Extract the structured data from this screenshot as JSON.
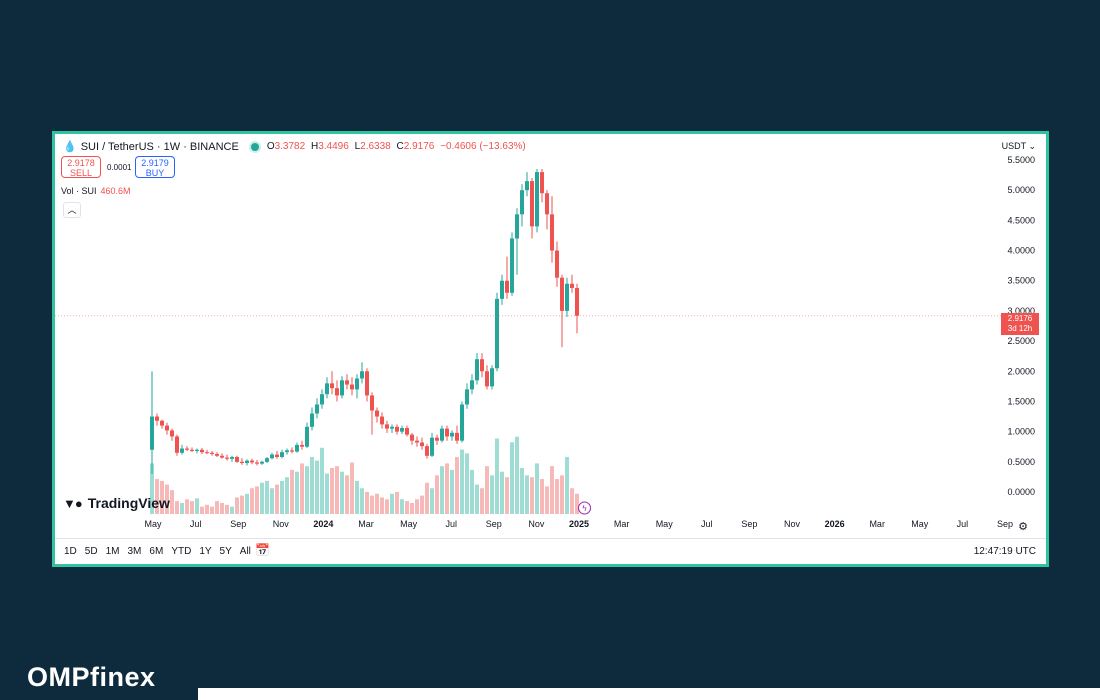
{
  "header": {
    "symbol": "SUI / TetherUS · 1W · BINANCE",
    "ohlc": {
      "o_label": "O",
      "o": "3.3782",
      "h_label": "H",
      "h": "3.4496",
      "l_label": "L",
      "l": "2.6338",
      "c_label": "C",
      "c": "2.9176",
      "change": "−0.4606 (−13.63%)"
    }
  },
  "trade": {
    "sell_price": "2.9178",
    "sell_label": "SELL",
    "spread": "0.0001",
    "buy_price": "2.9179",
    "buy_label": "BUY"
  },
  "volume_label": {
    "name": "Vol · SUI",
    "value": "460.6M"
  },
  "currency": "USDT",
  "brand_logo": "TradingView",
  "last_price_tag": {
    "price": "2.9176",
    "countdown": "3d 12h"
  },
  "timeframes": [
    "1D",
    "5D",
    "1M",
    "3M",
    "6M",
    "YTD",
    "1Y",
    "5Y",
    "All"
  ],
  "clock": "12:47:19 UTC",
  "site_brand": "OMPfinex",
  "colors": {
    "up": "#26a69a",
    "down": "#ef5350",
    "up_volume": "#9fdcd3",
    "down_volume": "#f7b9b7",
    "frame": "#2fc3a0",
    "background": "#0e2a3d"
  },
  "icons": {
    "calendar": "calendar-range-icon",
    "settings": "gear-icon",
    "status": "market-open-dot-icon",
    "flash": "lightning-icon"
  },
  "chart_data": {
    "type": "candlestick",
    "interval": "1W",
    "y_ticks": [
      "5.5000",
      "5.0000",
      "4.5000",
      "4.0000",
      "3.5000",
      "3.0000",
      "2.5000",
      "2.0000",
      "1.5000",
      "1.0000",
      "0.5000",
      "0.0000"
    ],
    "ylim": [
      0,
      5.5
    ],
    "x_ticks": [
      {
        "label": "May",
        "bold": false
      },
      {
        "label": "Jul",
        "bold": false
      },
      {
        "label": "Sep",
        "bold": false
      },
      {
        "label": "Nov",
        "bold": false
      },
      {
        "label": "2024",
        "bold": true
      },
      {
        "label": "Mar",
        "bold": false
      },
      {
        "label": "May",
        "bold": false
      },
      {
        "label": "Jul",
        "bold": false
      },
      {
        "label": "Sep",
        "bold": false
      },
      {
        "label": "Nov",
        "bold": false
      },
      {
        "label": "2025",
        "bold": true
      },
      {
        "label": "Mar",
        "bold": false
      },
      {
        "label": "May",
        "bold": false
      },
      {
        "label": "Jul",
        "bold": false
      },
      {
        "label": "Sep",
        "bold": false
      },
      {
        "label": "Nov",
        "bold": false
      },
      {
        "label": "2026",
        "bold": true
      },
      {
        "label": "Mar",
        "bold": false
      },
      {
        "label": "May",
        "bold": false
      },
      {
        "label": "Jul",
        "bold": false
      },
      {
        "label": "Sep",
        "bold": false
      }
    ],
    "last_price": 2.9176,
    "candles": [
      {
        "o": 0.7,
        "h": 2.0,
        "l": 0.3,
        "c": 1.25
      },
      {
        "o": 1.25,
        "h": 1.3,
        "l": 1.1,
        "c": 1.18
      },
      {
        "o": 1.18,
        "h": 1.2,
        "l": 1.05,
        "c": 1.1
      },
      {
        "o": 1.1,
        "h": 1.15,
        "l": 0.95,
        "c": 1.02
      },
      {
        "o": 1.02,
        "h": 1.05,
        "l": 0.85,
        "c": 0.92
      },
      {
        "o": 0.92,
        "h": 0.95,
        "l": 0.6,
        "c": 0.65
      },
      {
        "o": 0.65,
        "h": 0.78,
        "l": 0.62,
        "c": 0.72
      },
      {
        "o": 0.72,
        "h": 0.76,
        "l": 0.68,
        "c": 0.7
      },
      {
        "o": 0.7,
        "h": 0.74,
        "l": 0.66,
        "c": 0.68
      },
      {
        "o": 0.68,
        "h": 0.72,
        "l": 0.64,
        "c": 0.7
      },
      {
        "o": 0.7,
        "h": 0.73,
        "l": 0.63,
        "c": 0.66
      },
      {
        "o": 0.66,
        "h": 0.7,
        "l": 0.63,
        "c": 0.65
      },
      {
        "o": 0.65,
        "h": 0.68,
        "l": 0.6,
        "c": 0.63
      },
      {
        "o": 0.63,
        "h": 0.66,
        "l": 0.58,
        "c": 0.6
      },
      {
        "o": 0.6,
        "h": 0.64,
        "l": 0.55,
        "c": 0.57
      },
      {
        "o": 0.57,
        "h": 0.62,
        "l": 0.52,
        "c": 0.55
      },
      {
        "o": 0.55,
        "h": 0.6,
        "l": 0.5,
        "c": 0.58
      },
      {
        "o": 0.58,
        "h": 0.6,
        "l": 0.48,
        "c": 0.5
      },
      {
        "o": 0.5,
        "h": 0.56,
        "l": 0.45,
        "c": 0.48
      },
      {
        "o": 0.48,
        "h": 0.54,
        "l": 0.44,
        "c": 0.52
      },
      {
        "o": 0.52,
        "h": 0.55,
        "l": 0.46,
        "c": 0.49
      },
      {
        "o": 0.49,
        "h": 0.53,
        "l": 0.44,
        "c": 0.47
      },
      {
        "o": 0.47,
        "h": 0.52,
        "l": 0.45,
        "c": 0.5
      },
      {
        "o": 0.5,
        "h": 0.58,
        "l": 0.48,
        "c": 0.56
      },
      {
        "o": 0.56,
        "h": 0.65,
        "l": 0.54,
        "c": 0.62
      },
      {
        "o": 0.62,
        "h": 0.68,
        "l": 0.55,
        "c": 0.58
      },
      {
        "o": 0.58,
        "h": 0.7,
        "l": 0.56,
        "c": 0.66
      },
      {
        "o": 0.66,
        "h": 0.72,
        "l": 0.62,
        "c": 0.69
      },
      {
        "o": 0.69,
        "h": 0.74,
        "l": 0.64,
        "c": 0.67
      },
      {
        "o": 0.67,
        "h": 0.82,
        "l": 0.65,
        "c": 0.78
      },
      {
        "o": 0.78,
        "h": 0.85,
        "l": 0.7,
        "c": 0.75
      },
      {
        "o": 0.75,
        "h": 1.15,
        "l": 0.73,
        "c": 1.08
      },
      {
        "o": 1.08,
        "h": 1.4,
        "l": 1.02,
        "c": 1.3
      },
      {
        "o": 1.3,
        "h": 1.55,
        "l": 1.22,
        "c": 1.45
      },
      {
        "o": 1.45,
        "h": 1.7,
        "l": 1.38,
        "c": 1.62
      },
      {
        "o": 1.62,
        "h": 1.9,
        "l": 1.55,
        "c": 1.8
      },
      {
        "o": 1.8,
        "h": 2.0,
        "l": 1.62,
        "c": 1.72
      },
      {
        "o": 1.72,
        "h": 1.85,
        "l": 1.5,
        "c": 1.6
      },
      {
        "o": 1.6,
        "h": 1.92,
        "l": 1.55,
        "c": 1.85
      },
      {
        "o": 1.85,
        "h": 1.95,
        "l": 1.7,
        "c": 1.78
      },
      {
        "o": 1.78,
        "h": 1.9,
        "l": 1.6,
        "c": 1.7
      },
      {
        "o": 1.7,
        "h": 1.95,
        "l": 1.55,
        "c": 1.88
      },
      {
        "o": 1.88,
        "h": 2.15,
        "l": 1.8,
        "c": 2.0
      },
      {
        "o": 2.0,
        "h": 2.05,
        "l": 1.5,
        "c": 1.6
      },
      {
        "o": 1.6,
        "h": 1.65,
        "l": 0.95,
        "c": 1.35
      },
      {
        "o": 1.35,
        "h": 1.4,
        "l": 1.15,
        "c": 1.25
      },
      {
        "o": 1.25,
        "h": 1.32,
        "l": 1.05,
        "c": 1.12
      },
      {
        "o": 1.12,
        "h": 1.18,
        "l": 0.98,
        "c": 1.05
      },
      {
        "o": 1.05,
        "h": 1.12,
        "l": 0.98,
        "c": 1.08
      },
      {
        "o": 1.08,
        "h": 1.12,
        "l": 0.95,
        "c": 1.0
      },
      {
        "o": 1.0,
        "h": 1.1,
        "l": 0.96,
        "c": 1.06
      },
      {
        "o": 1.06,
        "h": 1.1,
        "l": 0.92,
        "c": 0.95
      },
      {
        "o": 0.95,
        "h": 0.98,
        "l": 0.78,
        "c": 0.85
      },
      {
        "o": 0.85,
        "h": 0.92,
        "l": 0.75,
        "c": 0.82
      },
      {
        "o": 0.82,
        "h": 0.9,
        "l": 0.7,
        "c": 0.76
      },
      {
        "o": 0.76,
        "h": 0.8,
        "l": 0.55,
        "c": 0.6
      },
      {
        "o": 0.6,
        "h": 0.98,
        "l": 0.58,
        "c": 0.9
      },
      {
        "o": 0.9,
        "h": 0.95,
        "l": 0.78,
        "c": 0.85
      },
      {
        "o": 0.85,
        "h": 1.1,
        "l": 0.82,
        "c": 1.05
      },
      {
        "o": 1.05,
        "h": 1.1,
        "l": 0.85,
        "c": 0.92
      },
      {
        "o": 0.92,
        "h": 1.02,
        "l": 0.85,
        "c": 0.98
      },
      {
        "o": 0.98,
        "h": 1.1,
        "l": 0.8,
        "c": 0.85
      },
      {
        "o": 0.85,
        "h": 1.5,
        "l": 0.82,
        "c": 1.45
      },
      {
        "o": 1.45,
        "h": 1.8,
        "l": 1.38,
        "c": 1.7
      },
      {
        "o": 1.7,
        "h": 1.95,
        "l": 1.62,
        "c": 1.85
      },
      {
        "o": 1.85,
        "h": 2.3,
        "l": 1.78,
        "c": 2.2
      },
      {
        "o": 2.2,
        "h": 2.3,
        "l": 1.9,
        "c": 2.0
      },
      {
        "o": 2.0,
        "h": 2.1,
        "l": 1.7,
        "c": 1.75
      },
      {
        "o": 1.75,
        "h": 2.1,
        "l": 1.7,
        "c": 2.05
      },
      {
        "o": 2.05,
        "h": 3.3,
        "l": 2.0,
        "c": 3.2
      },
      {
        "o": 3.2,
        "h": 3.6,
        "l": 3.1,
        "c": 3.5
      },
      {
        "o": 3.5,
        "h": 3.9,
        "l": 3.2,
        "c": 3.3
      },
      {
        "o": 3.3,
        "h": 4.3,
        "l": 3.25,
        "c": 4.2
      },
      {
        "o": 4.2,
        "h": 4.7,
        "l": 3.6,
        "c": 4.6
      },
      {
        "o": 4.6,
        "h": 5.1,
        "l": 4.4,
        "c": 5.0
      },
      {
        "o": 5.0,
        "h": 5.3,
        "l": 4.9,
        "c": 5.15
      },
      {
        "o": 5.15,
        "h": 5.2,
        "l": 4.2,
        "c": 4.4
      },
      {
        "o": 4.4,
        "h": 5.35,
        "l": 4.3,
        "c": 5.3
      },
      {
        "o": 5.3,
        "h": 5.35,
        "l": 4.8,
        "c": 4.95
      },
      {
        "o": 4.95,
        "h": 5.0,
        "l": 4.35,
        "c": 4.6
      },
      {
        "o": 4.6,
        "h": 4.9,
        "l": 3.8,
        "c": 4.0
      },
      {
        "o": 4.0,
        "h": 4.15,
        "l": 3.4,
        "c": 3.55
      },
      {
        "o": 3.55,
        "h": 3.6,
        "l": 2.4,
        "c": 3.0
      },
      {
        "o": 3.0,
        "h": 3.55,
        "l": 2.9,
        "c": 3.45
      },
      {
        "o": 3.45,
        "h": 3.6,
        "l": 3.3,
        "c": 3.38
      },
      {
        "o": 3.38,
        "h": 3.45,
        "l": 2.63,
        "c": 2.92
      }
    ],
    "volumes": [
      0.55,
      0.38,
      0.36,
      0.32,
      0.26,
      0.14,
      0.12,
      0.16,
      0.14,
      0.17,
      0.08,
      0.1,
      0.08,
      0.14,
      0.12,
      0.1,
      0.08,
      0.18,
      0.2,
      0.22,
      0.28,
      0.3,
      0.34,
      0.36,
      0.28,
      0.32,
      0.36,
      0.4,
      0.48,
      0.46,
      0.55,
      0.52,
      0.62,
      0.58,
      0.72,
      0.44,
      0.5,
      0.52,
      0.46,
      0.42,
      0.56,
      0.36,
      0.28,
      0.24,
      0.2,
      0.22,
      0.18,
      0.16,
      0.22,
      0.24,
      0.16,
      0.14,
      0.12,
      0.16,
      0.2,
      0.34,
      0.28,
      0.42,
      0.52,
      0.55,
      0.48,
      0.62,
      0.7,
      0.66,
      0.48,
      0.32,
      0.28,
      0.52,
      0.42,
      0.82,
      0.46,
      0.4,
      0.78,
      0.84,
      0.5,
      0.42,
      0.4,
      0.55,
      0.38,
      0.3,
      0.52,
      0.38,
      0.42,
      0.62,
      0.28,
      0.22
    ]
  }
}
